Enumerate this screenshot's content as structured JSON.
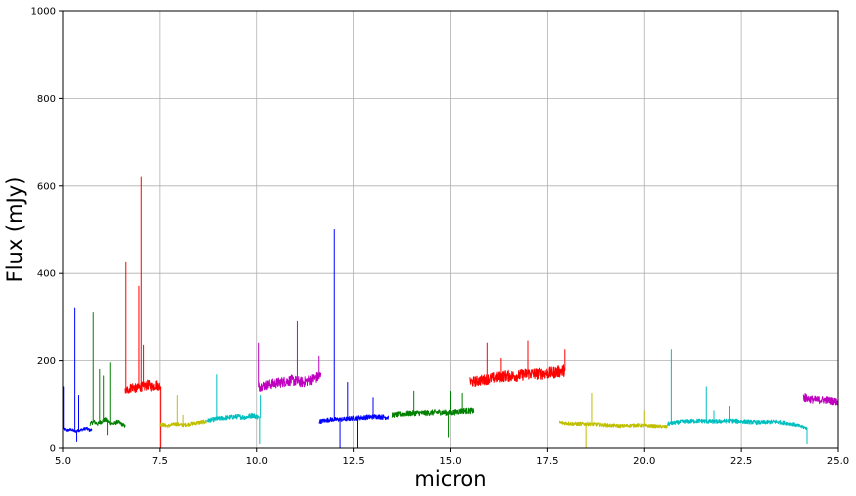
{
  "chart_data": {
    "type": "line",
    "title": "",
    "xlabel": "micron",
    "ylabel": "Flux (mJy)",
    "xlim": [
      5.0,
      25.0
    ],
    "ylim": [
      0,
      1000
    ],
    "x_ticks": [
      5.0,
      7.5,
      10.0,
      12.5,
      15.0,
      17.5,
      20.0,
      22.5,
      25.0
    ],
    "x_tick_labels": [
      "5.0",
      "7.5",
      "10.0",
      "12.5",
      "15.0",
      "17.5",
      "20.0",
      "22.5",
      "25.0"
    ],
    "y_ticks": [
      0,
      200,
      400,
      600,
      800,
      1000
    ],
    "y_tick_labels": [
      "0",
      "200",
      "400",
      "600",
      "800",
      "1000"
    ],
    "grid": true,
    "legend": "none",
    "series": [
      {
        "color": "#0000ff",
        "x": [
          5.0,
          5.1,
          5.2,
          5.3,
          5.4,
          5.5,
          5.6,
          5.7,
          5.75
        ],
        "y": [
          45,
          40,
          42,
          38,
          40,
          42,
          45,
          40,
          42
        ],
        "peaks": [
          [
            5.02,
            140
          ],
          [
            5.3,
            320
          ],
          [
            5.35,
            15
          ],
          [
            5.4,
            120
          ]
        ]
      },
      {
        "color": "#008000",
        "x": [
          5.7,
          5.8,
          5.9,
          6.0,
          6.1,
          6.2,
          6.3,
          6.4,
          6.5,
          6.6
        ],
        "y": [
          55,
          60,
          55,
          60,
          65,
          58,
          55,
          60,
          55,
          50
        ],
        "peaks": [
          [
            5.78,
            310
          ],
          [
            5.95,
            180
          ],
          [
            6.05,
            165
          ],
          [
            6.15,
            30
          ],
          [
            6.22,
            195
          ]
        ]
      },
      {
        "color": "#ff0000",
        "x": [
          6.6,
          6.7,
          6.8,
          6.9,
          7.0,
          7.1,
          7.2,
          7.3,
          7.4,
          7.5
        ],
        "y": [
          130,
          135,
          140,
          135,
          140,
          140,
          145,
          140,
          145,
          140
        ],
        "peaks": [
          [
            6.62,
            425
          ],
          [
            6.96,
            370
          ],
          [
            7.02,
            620
          ],
          [
            7.08,
            235
          ],
          [
            7.52,
            0
          ]
        ]
      },
      {
        "color": "#bfbf00",
        "x": [
          7.5,
          7.7,
          7.9,
          8.1,
          8.3,
          8.5,
          8.7
        ],
        "y": [
          55,
          50,
          55,
          52,
          55,
          58,
          60
        ],
        "peaks": [
          [
            7.95,
            120
          ],
          [
            8.1,
            75
          ]
        ]
      },
      {
        "color": "#00bfbf",
        "x": [
          8.7,
          8.9,
          9.1,
          9.3,
          9.5,
          9.7,
          9.9,
          10.05
        ],
        "y": [
          62,
          65,
          68,
          70,
          72,
          70,
          75,
          70
        ],
        "peaks": [
          [
            8.97,
            168
          ],
          [
            10.08,
            10
          ],
          [
            10.1,
            120
          ]
        ]
      },
      {
        "color": "#bf00bf",
        "x": [
          10.05,
          10.3,
          10.6,
          10.9,
          11.2,
          11.5,
          11.65
        ],
        "y": [
          140,
          145,
          150,
          155,
          150,
          160,
          165
        ],
        "peaks": [
          [
            10.05,
            240
          ],
          [
            11.05,
            290
          ],
          [
            11.6,
            210
          ]
        ]
      },
      {
        "color": "#0000ff",
        "x": [
          11.6,
          11.9,
          12.2,
          12.5,
          12.8,
          13.1,
          13.4
        ],
        "y": [
          60,
          65,
          65,
          68,
          70,
          72,
          70
        ],
        "peaks": [
          [
            12.0,
            500
          ],
          [
            12.15,
            0
          ],
          [
            12.35,
            150
          ],
          [
            12.6,
            0
          ],
          [
            13.0,
            115
          ]
        ]
      },
      {
        "color": "#008000",
        "x": [
          13.5,
          13.8,
          14.1,
          14.4,
          14.7,
          15.0,
          15.3,
          15.6
        ],
        "y": [
          75,
          78,
          80,
          80,
          82,
          80,
          85,
          85
        ],
        "peaks": [
          [
            14.05,
            130
          ],
          [
            14.95,
            25
          ],
          [
            15.0,
            130
          ],
          [
            15.3,
            125
          ]
        ]
      },
      {
        "color": "#ff0000",
        "x": [
          15.5,
          15.8,
          16.1,
          16.4,
          16.7,
          17.0,
          17.3,
          17.6,
          17.95
        ],
        "y": [
          150,
          155,
          160,
          165,
          165,
          170,
          170,
          172,
          178
        ],
        "peaks": [
          [
            15.95,
            240
          ],
          [
            16.3,
            205
          ],
          [
            17.0,
            245
          ],
          [
            17.95,
            225
          ]
        ]
      },
      {
        "color": "#bfbf00",
        "x": [
          17.8,
          18.2,
          18.6,
          19.0,
          19.4,
          19.8,
          20.2,
          20.6
        ],
        "y": [
          58,
          55,
          55,
          52,
          50,
          52,
          50,
          48
        ],
        "peaks": [
          [
            18.5,
            0
          ],
          [
            18.65,
            125
          ],
          [
            20.0,
            85
          ]
        ]
      },
      {
        "color": "#00bfbf",
        "x": [
          20.6,
          21.0,
          21.4,
          21.8,
          22.2,
          22.6,
          23.0,
          23.4,
          23.8,
          24.2
        ],
        "y": [
          55,
          60,
          62,
          60,
          62,
          60,
          58,
          60,
          55,
          45
        ],
        "peaks": [
          [
            20.7,
            225
          ],
          [
            21.6,
            140
          ],
          [
            21.8,
            85
          ],
          [
            22.2,
            95
          ],
          [
            24.2,
            10
          ]
        ]
      },
      {
        "color": "#bf00bf",
        "x": [
          24.1,
          24.4,
          24.7,
          25.0
        ],
        "y": [
          115,
          110,
          110,
          105
        ],
        "peaks": [
          [
            24.15,
            125
          ],
          [
            25.0,
            155
          ]
        ]
      }
    ]
  }
}
